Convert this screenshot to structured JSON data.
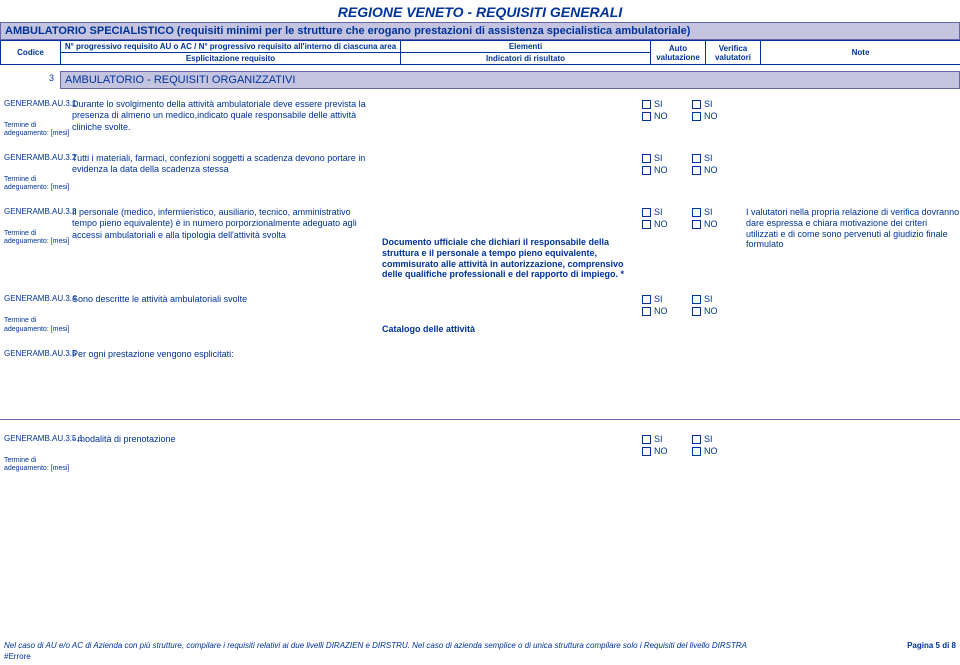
{
  "title": "REGIONE  VENETO - REQUISITI GENERALI",
  "subtitle": "AMBULATORIO SPECIALISTICO (requisiti minimi per le strutture che erogano prestazioni di assistenza specialistica ambulatoriale)",
  "header": {
    "codice": "Codice",
    "progRow1": "N° progressivo requisito AU o AC / N° progressivo requisito all'interno di ciascuna area",
    "progRow2": "Esplicitazione requisito",
    "elemRow1": "Elementi",
    "elemRow2": "Indicatori di risultato",
    "auto": "Auto valutazione",
    "ver": "Verifica valutatori",
    "note": "Note"
  },
  "section": {
    "num": "3",
    "text": "AMBULATORIO - REQUISITI ORGANIZZATIVI"
  },
  "termLabel": "Termine di adeguamento: [mesi]",
  "checkbox": {
    "si": "SI",
    "no": "NO"
  },
  "rows": [
    {
      "code": "GENERAMB.AU.3.1",
      "desc": "Durante lo svolgimento della attività ambulatoriale deve essere prevista la presenza di almeno un medico,indicato quale responsabile delle attività cliniche svolte.",
      "indic": "",
      "note": "",
      "showTerm": true,
      "showChecks": true
    },
    {
      "code": "GENERAMB.AU.3.2",
      "desc": "Tutti i materiali, farmaci, confezioni soggetti a scadenza devono portare in evidenza la data della scadenza stessa",
      "indic": "",
      "note": "",
      "showTerm": true,
      "showChecks": true
    },
    {
      "code": "GENERAMB.AU.3.3",
      "desc": "Il personale (medico, infermieristico, ausiliario, tecnico, amministrativo tempo pieno equivalente) è in numero porporzionalmente adeguato agli accessi ambulatoriali e alla tipologia dell'attività svolta",
      "indic": "Documento ufficiale che dichiari il responsabile della struttura e il personale a tempo pieno equivalente, commisurato alle attività in autorizzazione, comprensivo delle qualifiche professionali e del rapporto di impiego. *",
      "note": "I valutatori nella propria relazione di verifica dovranno dare espressa e chiara motivazione dei criteri utilizzati e di come sono pervenuti al giudizio finale formulato",
      "showTerm": true,
      "showChecks": true
    },
    {
      "code": "GENERAMB.AU.3.4",
      "desc": "Sono descritte le attività ambulatoriali svolte",
      "indic": "Catalogo delle attività",
      "note": "",
      "showTerm": true,
      "showChecks": true
    },
    {
      "code": "GENERAMB.AU.3.5",
      "desc": "Per ogni prestazione vengono esplicitati:",
      "indic": "",
      "note": "",
      "showTerm": false,
      "showChecks": false
    }
  ],
  "rowAfter": {
    "code": "GENERAMB.AU.3.5.1",
    "desc": "- modalità di prenotazione",
    "indic": "",
    "note": "",
    "showTerm": true
  },
  "footer": {
    "text1": "Nel caso di AU e/o AC di Azienda con più strutture, compilare i requisiti relativi ai due livelli DIRAZIEN e DIRSTRU. Nel caso di azienda semplice o di unica struttura compilare solo i Requisiti del livello DIRSTRA",
    "pagina": "Pagina 5 di 8",
    "err": "#Errore"
  },
  "style": {
    "primaryColor": "#003399",
    "barBg": "#c4c4e0",
    "titleFontSize": 14,
    "bodyFontSize": 9
  }
}
